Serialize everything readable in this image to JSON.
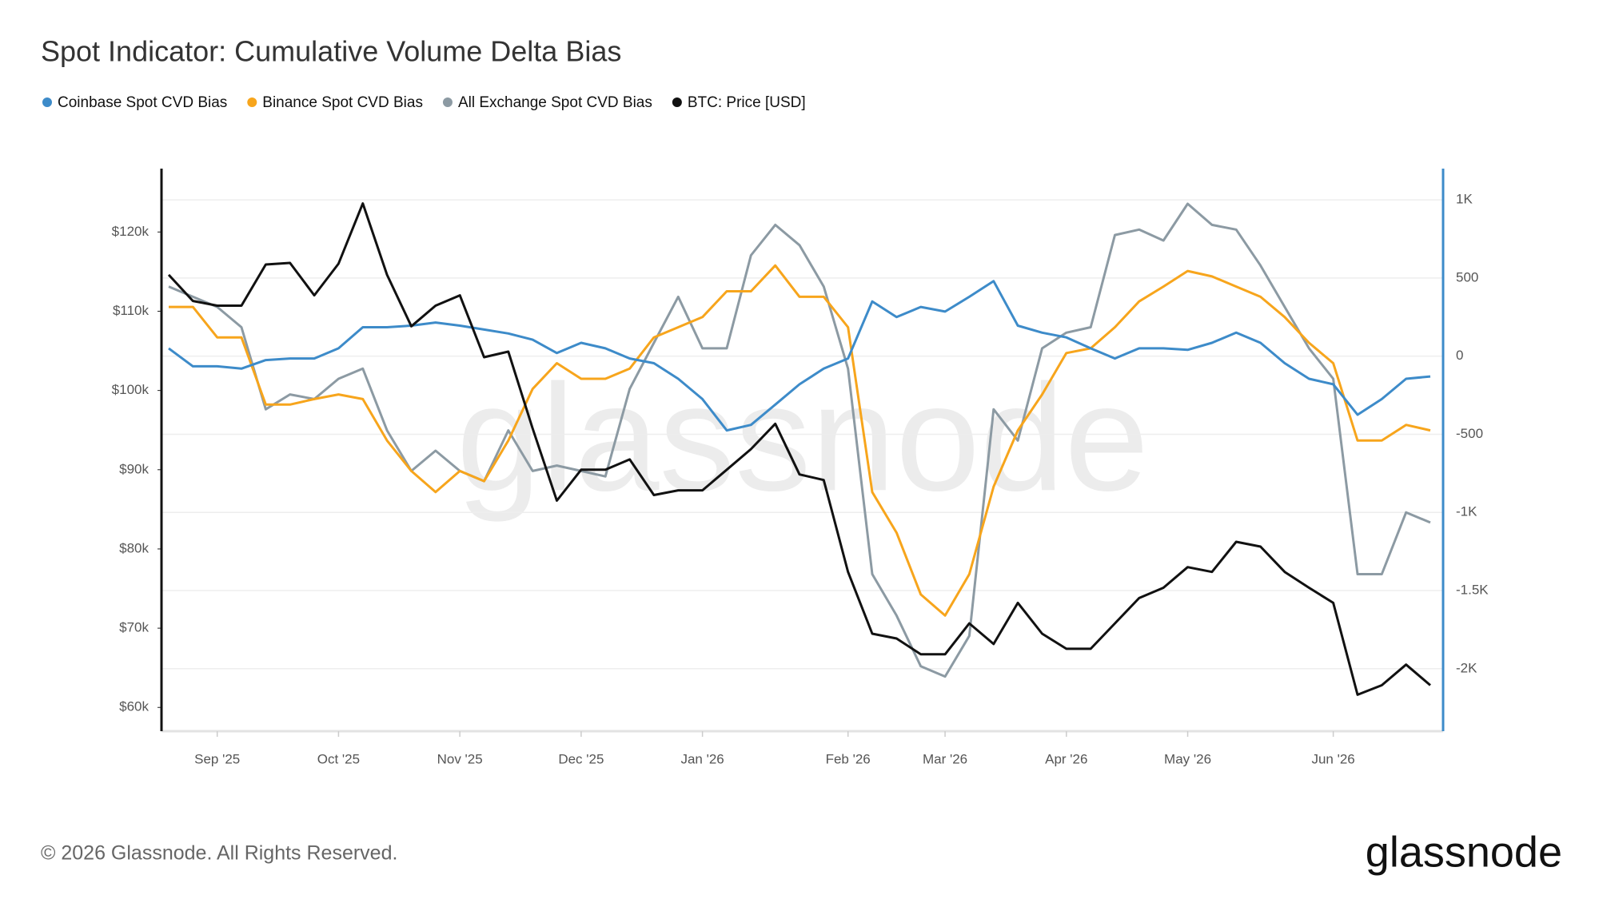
{
  "chart_data": {
    "type": "line",
    "title": "Spot Indicator: Cumulative Volume Delta Bias",
    "watermark": "glassnode",
    "copyright": "© 2026 Glassnode. All Rights Reserved.",
    "logo": "glassnode",
    "categories": [
      null,
      null,
      "Sep '25",
      null,
      null,
      null,
      null,
      "Oct '25",
      null,
      null,
      null,
      null,
      "Nov '25",
      null,
      null,
      null,
      null,
      "Dec '25",
      null,
      null,
      null,
      null,
      "Jan '26",
      null,
      null,
      null,
      null,
      null,
      "Feb '26",
      null,
      null,
      null,
      "Mar '26",
      null,
      null,
      null,
      null,
      "Apr '26",
      null,
      null,
      null,
      null,
      "May '26",
      null,
      null,
      null,
      null,
      null,
      "Jun '26",
      null,
      null,
      null,
      null
    ],
    "series": [
      {
        "name": "Coinbase Spot CVD Bias",
        "color": "#3d8bc9",
        "axis": "y2",
        "values": [
          50,
          -65,
          -65,
          -80,
          -25,
          -15,
          -15,
          50,
          185,
          185,
          195,
          215,
          195,
          170,
          145,
          105,
          20,
          85,
          50,
          -15,
          -45,
          -145,
          -275,
          -475,
          -440,
          -310,
          -180,
          -80,
          -15,
          350,
          250,
          315,
          285,
          380,
          480,
          195,
          150,
          120,
          50,
          -15,
          50,
          50,
          40,
          85,
          150,
          85,
          -45,
          -145,
          -180,
          -375,
          -275,
          -145,
          -130
        ]
      },
      {
        "name": "Binance Spot CVD Bias",
        "color": "#f7a51c",
        "axis": "y2",
        "values": [
          315,
          315,
          120,
          120,
          -310,
          -310,
          -275,
          -245,
          -275,
          -540,
          -735,
          -870,
          -735,
          -800,
          -540,
          -210,
          -45,
          -145,
          -145,
          -80,
          120,
          185,
          250,
          415,
          415,
          580,
          380,
          380,
          185,
          -870,
          -1130,
          -1525,
          -1660,
          -1395,
          -835,
          -475,
          -245,
          20,
          50,
          185,
          350,
          445,
          545,
          510,
          445,
          380,
          250,
          85,
          -45,
          -540,
          -540,
          -440,
          -475
        ]
      },
      {
        "name": "All Exchange Spot CVD Bias",
        "color": "#8c9aa3",
        "axis": "y2",
        "values": [
          445,
          380,
          315,
          185,
          -340,
          -245,
          -275,
          -145,
          -80,
          -475,
          -735,
          -605,
          -735,
          -800,
          -475,
          -735,
          -700,
          -735,
          -770,
          -210,
          85,
          380,
          50,
          50,
          645,
          840,
          710,
          445,
          -80,
          -1395,
          -1660,
          -1985,
          -2050,
          -1790,
          -340,
          -540,
          50,
          150,
          185,
          775,
          810,
          740,
          975,
          840,
          810,
          580,
          315,
          50,
          -145,
          -1395,
          -1395,
          -1000,
          -1065
        ]
      },
      {
        "name": "BTC: Price [USD]",
        "color": "#111111",
        "values": [
          114600,
          111300,
          110700,
          110700,
          115900,
          116100,
          112000,
          116000,
          123600,
          114600,
          108100,
          110700,
          112000,
          104200,
          104900,
          95200,
          86100,
          90000,
          90000,
          91300,
          86800,
          87400,
          87400,
          90000,
          92600,
          95800,
          89400,
          88700,
          77100,
          69300,
          68700,
          66700,
          66700,
          70600,
          68000,
          73200,
          69300,
          67400,
          67400,
          70600,
          73800,
          75100,
          77700,
          77100,
          80900,
          80300,
          77100,
          75100,
          73200,
          61600,
          62800,
          65400,
          62800
        ]
      }
    ],
    "ylim": [
      57000,
      128000
    ],
    "yticks": [
      {
        "value": 60000,
        "label": "$60k"
      },
      {
        "value": 70000,
        "label": "$70k"
      },
      {
        "value": 80000,
        "label": "$80k"
      },
      {
        "value": 90000,
        "label": "$90k"
      },
      {
        "value": 100000,
        "label": "$100k"
      },
      {
        "value": 110000,
        "label": "$110k"
      },
      {
        "value": 120000,
        "label": "$120k"
      }
    ],
    "y2lim": [
      -2400,
      1200
    ],
    "y2ticks": [
      {
        "value": 1000,
        "label": "1K"
      },
      500,
      0,
      -500,
      {
        "value": -1000,
        "label": "-1K"
      },
      {
        "value": -1500,
        "label": "-1.5K"
      },
      {
        "value": -2000,
        "label": "-2K"
      }
    ],
    "grid": true
  }
}
